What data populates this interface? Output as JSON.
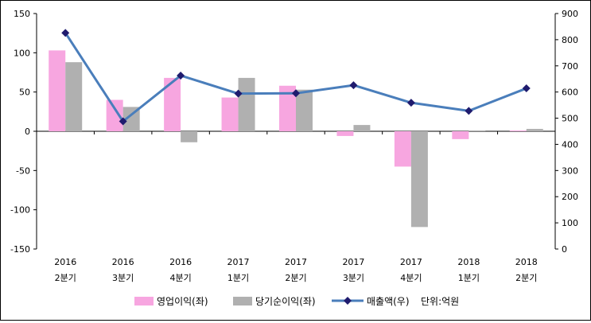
{
  "chart_data": {
    "type": "bar+line",
    "categories": [
      [
        "2016",
        "2분기"
      ],
      [
        "2016",
        "3분기"
      ],
      [
        "2016",
        "4분기"
      ],
      [
        "2017",
        "1분기"
      ],
      [
        "2017",
        "2분기"
      ],
      [
        "2017",
        "3분기"
      ],
      [
        "2017",
        "4분기"
      ],
      [
        "2018",
        "1분기"
      ],
      [
        "2018",
        "2분기"
      ]
    ],
    "series": [
      {
        "name": "영업이익(좌)",
        "type": "bar",
        "axis": "left",
        "color": "#f7a6e0",
        "values": [
          103,
          40,
          68,
          43,
          58,
          -6,
          -45,
          -10,
          1
        ]
      },
      {
        "name": "당기순이익(좌)",
        "type": "bar",
        "axis": "left",
        "color": "#b0b0b0",
        "values": [
          88,
          31,
          -14,
          68,
          53,
          8,
          -122,
          1,
          3
        ]
      },
      {
        "name": "매출액(우)",
        "type": "line",
        "axis": "right",
        "color": "#4a7ebb",
        "marker_color": "#1f1b6e",
        "values": [
          826,
          488,
          663,
          594,
          595,
          626,
          559,
          528,
          614
        ]
      }
    ],
    "left_axis": {
      "min": -150,
      "max": 150,
      "ticks": [
        150,
        100,
        50,
        0,
        -50,
        -100,
        -150
      ]
    },
    "right_axis": {
      "min": 0,
      "max": 900,
      "ticks": [
        900,
        800,
        700,
        600,
        500,
        400,
        300,
        200,
        100,
        0
      ]
    },
    "unit_note": "단위:억원",
    "legend_position": "bottom"
  }
}
